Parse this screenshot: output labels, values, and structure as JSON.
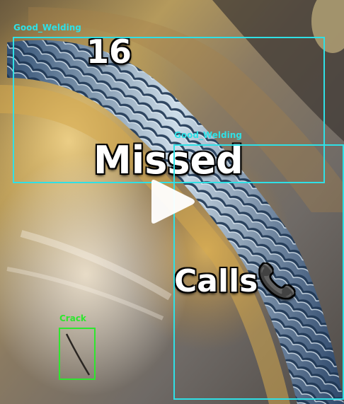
{
  "captions": {
    "line1": "16",
    "line2": "Missed",
    "line3": "Calls📞"
  },
  "detections": [
    {
      "label": "Good_Welding",
      "color": "#2fe0e6"
    },
    {
      "label": "Good_Welding",
      "color": "#2fe0e6"
    },
    {
      "label": "Crack",
      "color": "#2ee62e"
    }
  ],
  "icons": {
    "play": "play-icon"
  }
}
